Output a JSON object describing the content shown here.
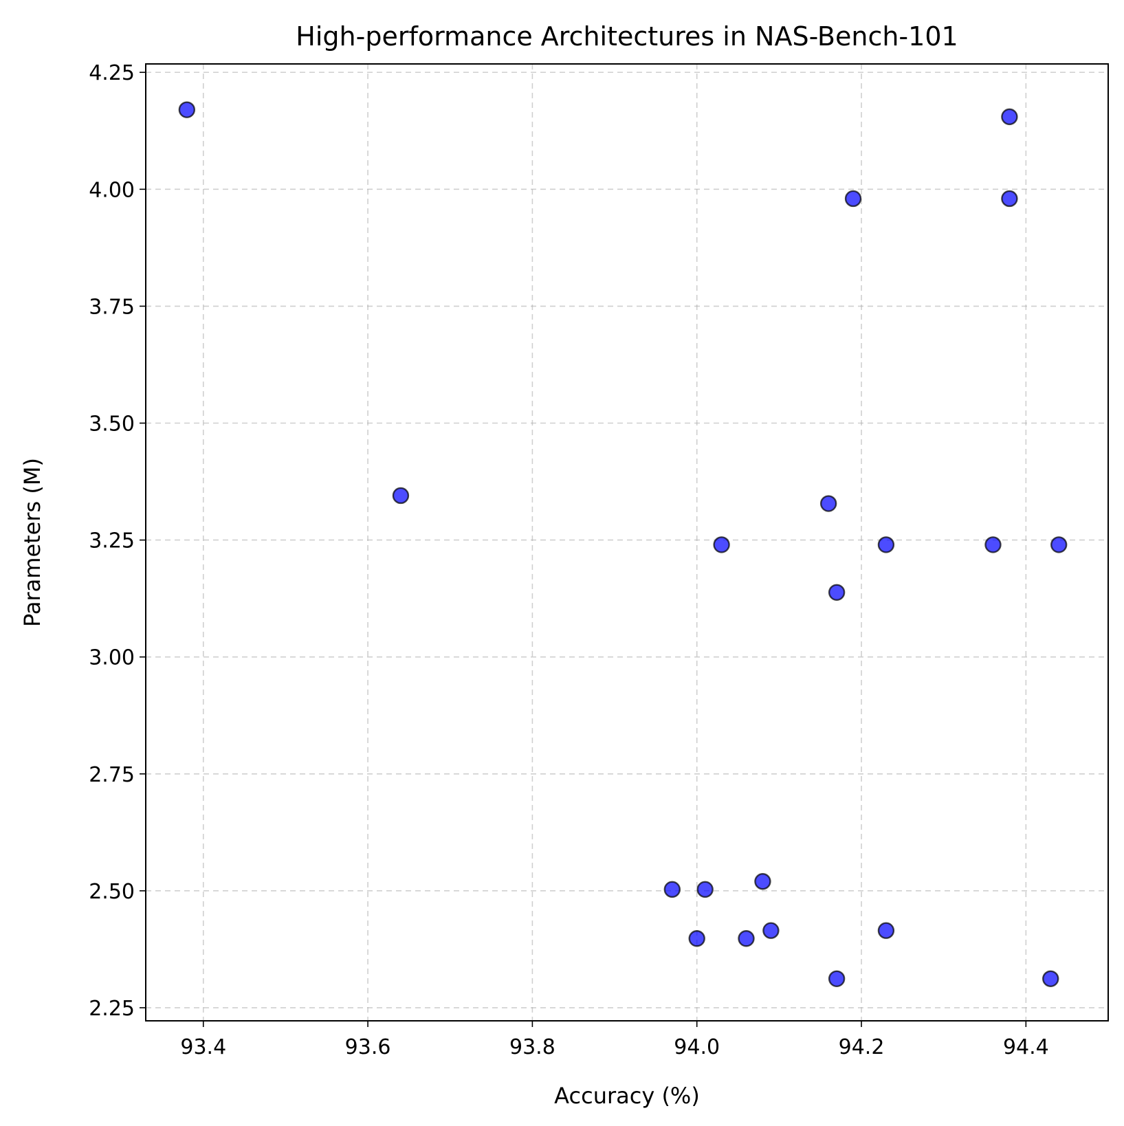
{
  "chart_data": {
    "type": "scatter",
    "title": "High-performance Architectures in NAS-Bench-101",
    "xlabel": "Accuracy (%)",
    "ylabel": "Parameters (M)",
    "xlim": [
      93.33,
      94.5
    ],
    "ylim": [
      2.222,
      4.268
    ],
    "xticks": [
      93.4,
      93.6,
      93.8,
      94.0,
      94.2,
      94.4
    ],
    "xtick_labels": [
      "93.4",
      "93.6",
      "93.8",
      "94.0",
      "94.2",
      "94.4"
    ],
    "yticks": [
      2.25,
      2.5,
      2.75,
      3.0,
      3.25,
      3.5,
      3.75,
      4.0,
      4.25
    ],
    "ytick_labels": [
      "2.25",
      "2.50",
      "2.75",
      "3.00",
      "3.25",
      "3.50",
      "3.75",
      "4.00",
      "4.25"
    ],
    "grid": true,
    "marker_color": "#0000ff",
    "marker_alpha": 0.7,
    "marker_edge_color": "#000000",
    "points": [
      {
        "x": 93.38,
        "y": 4.17
      },
      {
        "x": 93.64,
        "y": 3.345
      },
      {
        "x": 94.03,
        "y": 3.24
      },
      {
        "x": 94.16,
        "y": 3.328
      },
      {
        "x": 94.17,
        "y": 3.138
      },
      {
        "x": 94.19,
        "y": 3.98
      },
      {
        "x": 94.23,
        "y": 3.24
      },
      {
        "x": 94.36,
        "y": 3.24
      },
      {
        "x": 94.38,
        "y": 4.155
      },
      {
        "x": 94.38,
        "y": 3.98
      },
      {
        "x": 94.44,
        "y": 3.24
      },
      {
        "x": 93.97,
        "y": 2.503
      },
      {
        "x": 94.01,
        "y": 2.503
      },
      {
        "x": 94.08,
        "y": 2.52
      },
      {
        "x": 94.0,
        "y": 2.398
      },
      {
        "x": 94.06,
        "y": 2.398
      },
      {
        "x": 94.09,
        "y": 2.415
      },
      {
        "x": 94.23,
        "y": 2.415
      },
      {
        "x": 94.17,
        "y": 2.312
      },
      {
        "x": 94.43,
        "y": 2.312
      }
    ]
  }
}
